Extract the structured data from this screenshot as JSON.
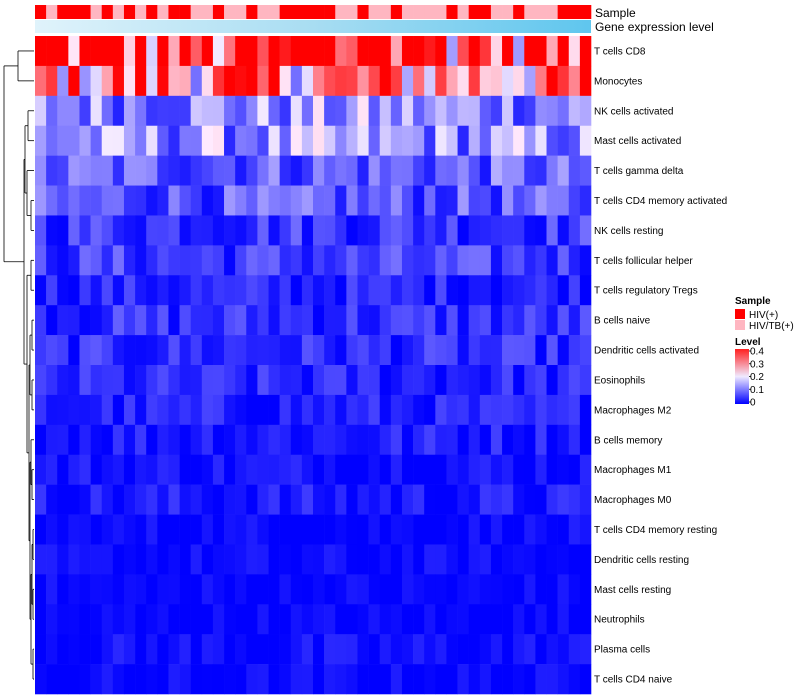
{
  "chart_data": {
    "type": "heatmap",
    "annotations": {
      "sample_label": "Sample",
      "expression_label": "Gene expression level"
    },
    "sample_groups": [
      "HIV(+)",
      "HIV/TB(+)",
      "HIV(+)",
      "HIV(+)",
      "HIV(+)",
      "HIV/TB(+)",
      "HIV(+)",
      "HIV/TB(+)",
      "HIV(+)",
      "HIV/TB(+)",
      "HIV(+)",
      "HIV/TB(+)",
      "HIV(+)",
      "HIV(+)",
      "HIV/TB(+)",
      "HIV/TB(+)",
      "HIV(+)",
      "HIV/TB(+)",
      "HIV/TB(+)",
      "HIV(+)",
      "HIV/TB(+)",
      "HIV/TB(+)",
      "HIV(+)",
      "HIV(+)",
      "HIV(+)",
      "HIV(+)",
      "HIV(+)",
      "HIV/TB(+)",
      "HIV/TB(+)",
      "HIV(+)",
      "HIV/TB(+)",
      "HIV/TB(+)",
      "HIV(+)",
      "HIV/TB(+)",
      "HIV/TB(+)",
      "HIV/TB(+)",
      "HIV/TB(+)",
      "HIV(+)",
      "HIV/TB(+)",
      "HIV(+)",
      "HIV(+)",
      "HIV/TB(+)",
      "HIV/TB(+)",
      "HIV(+)",
      "HIV/TB(+)",
      "HIV/TB(+)",
      "HIV/TB(+)",
      "HIV(+)",
      "HIV(+)",
      "HIV(+)"
    ],
    "rows": [
      "T cells CD8",
      "Monocytes",
      "NK cells activated",
      "Mast cells activated",
      "T cells gamma delta",
      "T cells CD4 memory activated",
      "NK cells resting",
      "T cells follicular helper",
      "T cells regulatory  Tregs",
      "B cells naive",
      "Dendritic cells activated",
      "Eosinophils",
      "Macrophages M2",
      "B cells memory",
      "Macrophages M1",
      "Macrophages M0",
      "T cells CD4 memory resting",
      "Dendritic cells resting",
      "Mast cells resting",
      "Neutrophils",
      "Plasma cells",
      "T cells CD4 naive"
    ],
    "row_means": [
      0.36,
      0.28,
      0.12,
      0.12,
      0.08,
      0.07,
      0.05,
      0.05,
      0.03,
      0.04,
      0.035,
      0.03,
      0.025,
      0.025,
      0.015,
      0.02,
      0.005,
      0.005,
      0.003,
      0.002,
      0.01,
      0.004
    ],
    "num_columns": 50,
    "values_note": "cell-level values approximated from row means",
    "color_scale": {
      "low": "#0000ff",
      "mid": "#fff0f0",
      "high": "#ff0000",
      "min": 0,
      "max": 0.4
    },
    "legend": {
      "sample_title": "Sample",
      "sample_entries": [
        {
          "label": "HIV(+)",
          "color": "#ff0000"
        },
        {
          "label": "HIV/TB(+)",
          "color": "#ffb6c1"
        }
      ],
      "level_title": "Level",
      "level_ticks": [
        "0.4",
        "0.3",
        "0.2",
        "0.1",
        "0"
      ]
    }
  }
}
